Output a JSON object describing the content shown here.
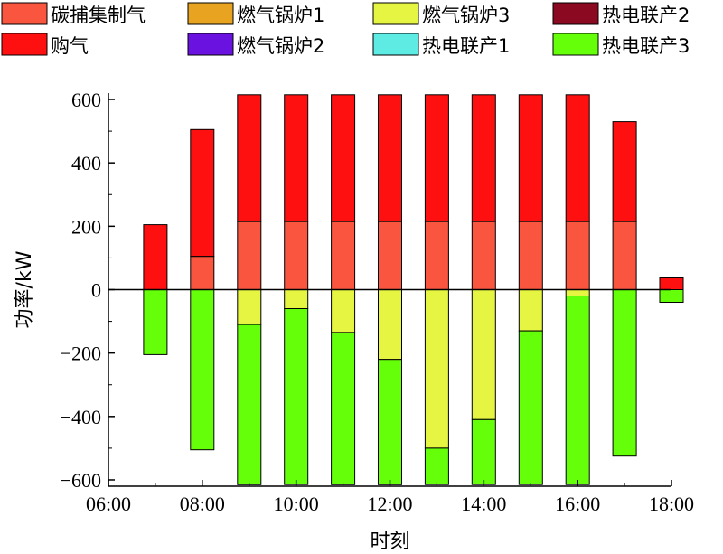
{
  "chart_data": {
    "type": "bar",
    "stacked": true,
    "xlabel": "时刻",
    "ylabel": "功率/kW",
    "ylim": [
      -620,
      620
    ],
    "xlim": [
      "06:00",
      "18:00"
    ],
    "x_ticks": [
      "06:00",
      "08:00",
      "10:00",
      "12:00",
      "14:00",
      "16:00",
      "18:00"
    ],
    "y_ticks": [
      -600,
      -400,
      -200,
      0,
      200,
      400,
      600
    ],
    "y_tick_labels": [
      "−600",
      "−400",
      "−200",
      "0",
      "200",
      "400",
      "600"
    ],
    "grid": false,
    "legend_position": "top",
    "hours": [
      7,
      8,
      9,
      10,
      11,
      12,
      13,
      14,
      15,
      16,
      17,
      18
    ],
    "series": [
      {
        "name": "碳捕集制气",
        "color": "#F9553F",
        "values": [
          0,
          105,
          215,
          215,
          215,
          215,
          215,
          215,
          215,
          215,
          215,
          0
        ]
      },
      {
        "name": "购气",
        "color": "#FF1010",
        "values": [
          205,
          400,
          400,
          400,
          400,
          400,
          400,
          400,
          400,
          400,
          315,
          37
        ]
      },
      {
        "name": "燃气锅炉1",
        "color": "#E8A320",
        "values": [
          0,
          0,
          0,
          0,
          0,
          0,
          0,
          0,
          0,
          0,
          0,
          0
        ]
      },
      {
        "name": "燃气锅炉2",
        "color": "#6A12E0",
        "values": [
          0,
          0,
          0,
          0,
          0,
          0,
          0,
          0,
          0,
          0,
          0,
          0
        ]
      },
      {
        "name": "燃气锅炉3",
        "color": "#E5F542",
        "values": [
          0,
          0,
          -110,
          -60,
          -135,
          -220,
          -500,
          -410,
          -130,
          -20,
          0,
          0
        ]
      },
      {
        "name": "热电联产1",
        "color": "#5EEBE3",
        "values": [
          0,
          0,
          0,
          0,
          0,
          0,
          0,
          0,
          0,
          0,
          0,
          0
        ]
      },
      {
        "name": "热电联产2",
        "color": "#8B0A22",
        "values": [
          0,
          0,
          0,
          0,
          0,
          0,
          0,
          0,
          0,
          0,
          0,
          0
        ]
      },
      {
        "name": "热电联产3",
        "color": "#66FF0A",
        "values": [
          -205,
          -505,
          -505,
          -555,
          -480,
          -395,
          -115,
          -205,
          -485,
          -595,
          -525,
          -40
        ]
      }
    ]
  }
}
